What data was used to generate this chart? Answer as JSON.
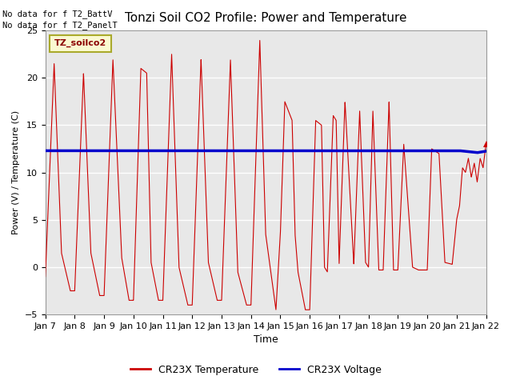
{
  "title": "Tonzi Soil CO2 Profile: Power and Temperature",
  "xlabel": "Time",
  "ylabel": "Power (V) / Temperature (C)",
  "ylim": [
    -5,
    25
  ],
  "yticks": [
    -5,
    0,
    5,
    10,
    15,
    20,
    25
  ],
  "xtick_labels": [
    "Jan 7",
    "Jan 8",
    "Jan 9",
    "Jan 10",
    "Jan 11",
    "Jan 12",
    "Jan 13",
    "Jan 14",
    "Jan 15",
    "Jan 16",
    "Jan 17",
    "Jan 18",
    "Jan 19",
    "Jan 20",
    "Jan 21",
    "Jan 22"
  ],
  "annotations_top_left": [
    "No data for f T2_BattV",
    "No data for f T2_PanelT"
  ],
  "legend_label_red": "CR23X Temperature",
  "legend_label_blue": "CR23X Voltage",
  "legend_box_label": "TZ_soilco2",
  "fig_bg_color": "#ffffff",
  "plot_bg_color": "#e8e8e8",
  "grid_color": "#ffffff",
  "voltage_value": 12.3,
  "temp_color": "#cc0000",
  "voltage_color": "#0000cc"
}
